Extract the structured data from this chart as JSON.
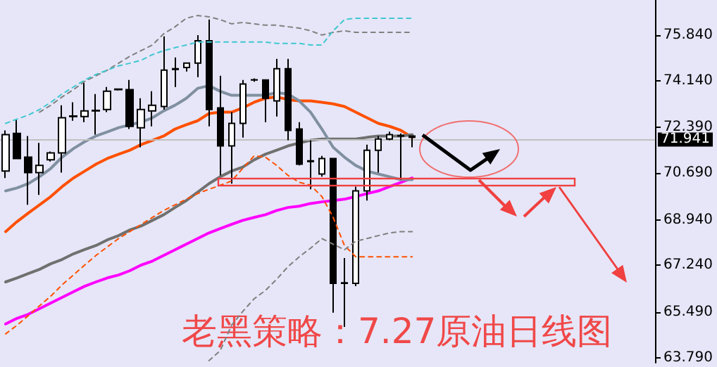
{
  "chart_data": {
    "type": "candlestick",
    "title": "老黑策略：7.27原油日线图",
    "categories": [
      null,
      null,
      null,
      null,
      null,
      null,
      null,
      null,
      null,
      null,
      null,
      null,
      null,
      null,
      null,
      null,
      null,
      null,
      null,
      null,
      null,
      null,
      null,
      null,
      null,
      null,
      null,
      null,
      null,
      null,
      null,
      null,
      null,
      null,
      null,
      null,
      null,
      null,
      null,
      null,
      null,
      null,
      null,
      null,
      null,
      null,
      null,
      null,
      null,
      null,
      null,
      null,
      null,
      null,
      null,
      null,
      null,
      null
    ],
    "ohlc": [
      [
        70.76,
        72.28,
        70.5,
        72.12
      ],
      [
        72.17,
        72.7,
        71.2,
        71.23
      ],
      [
        71.28,
        72.07,
        69.5,
        70.7
      ],
      [
        70.7,
        71.81,
        69.87,
        70.97
      ],
      [
        71.18,
        71.49,
        71.12,
        71.44
      ],
      [
        71.44,
        73.22,
        70.7,
        72.75
      ],
      [
        72.8,
        73.33,
        72.64,
        72.82
      ],
      [
        72.8,
        74.06,
        72.59,
        73.01
      ],
      [
        73.01,
        73.64,
        72.12,
        73.03
      ],
      [
        73.06,
        73.9,
        72.96,
        73.74
      ],
      [
        73.8,
        73.83,
        73.77,
        73.82
      ],
      [
        73.8,
        74.16,
        72.33,
        72.43
      ],
      [
        72.38,
        73.48,
        71.65,
        73.06
      ],
      [
        73.01,
        73.74,
        72.43,
        73.22
      ],
      [
        73.17,
        75.79,
        73.06,
        74.53
      ],
      [
        74.56,
        75.0,
        73.9,
        74.58
      ],
      [
        74.63,
        74.79,
        74.48,
        74.79
      ],
      [
        74.79,
        75.84,
        74.27,
        75.63
      ],
      [
        75.63,
        76.42,
        72.43,
        73.06
      ],
      [
        73.12,
        74.32,
        70.6,
        71.7
      ],
      [
        71.7,
        72.96,
        70.29,
        72.54
      ],
      [
        72.54,
        74.16,
        72.01,
        74.01
      ],
      [
        74.16,
        74.22,
        74.1,
        74.17
      ],
      [
        74.16,
        74.16,
        72.59,
        73.48
      ],
      [
        73.38,
        74.95,
        72.8,
        74.58
      ],
      [
        74.58,
        74.95,
        71.91,
        72.28
      ],
      [
        72.33,
        72.59,
        70.97,
        71.02
      ],
      [
        71.12,
        71.91,
        70.08,
        71.14
      ],
      [
        70.65,
        71.33,
        70.55,
        71.23
      ],
      [
        71.23,
        71.23,
        65.47,
        66.57
      ],
      [
        66.57,
        67.51,
        64.94,
        66.59
      ],
      [
        66.57,
        70.18,
        66.46,
        70.02
      ],
      [
        70.02,
        71.75,
        69.66,
        71.54
      ],
      [
        71.54,
        72.07,
        70.7,
        71.96
      ],
      [
        71.96,
        72.23,
        71.91,
        72.12
      ],
      [
        72.07,
        72.17,
        70.44,
        72.09
      ],
      [
        72.07,
        72.07,
        71.65,
        72.02
      ],
      null,
      null,
      null,
      null,
      null,
      null,
      null,
      null,
      null,
      null,
      null,
      null,
      null,
      null,
      null,
      null,
      null,
      null,
      null,
      null,
      null
    ],
    "color": "#000000",
    "series": [
      {
        "type": "line",
        "color": "#ff5000",
        "values": [
          68.5,
          68.87,
          69.19,
          69.5,
          69.81,
          70.18,
          70.5,
          70.76,
          71.02,
          71.23,
          71.39,
          71.54,
          71.75,
          71.91,
          72.07,
          72.33,
          72.49,
          72.64,
          72.91,
          72.96,
          72.96,
          73.12,
          73.33,
          73.48,
          73.53,
          73.43,
          73.38,
          73.38,
          73.33,
          73.27,
          73.17,
          72.96,
          72.75,
          72.54,
          72.43,
          72.28,
          72.02,
          null,
          null,
          null,
          null,
          null,
          null,
          null,
          null,
          null,
          null,
          null,
          null,
          null,
          null,
          null,
          null,
          null,
          null,
          null,
          null,
          null
        ]
      },
      {
        "type": "line",
        "color": "#707070",
        "values": [
          66.62,
          66.77,
          66.93,
          67.09,
          67.3,
          67.46,
          67.67,
          67.83,
          67.98,
          68.19,
          68.35,
          68.56,
          68.71,
          68.92,
          69.13,
          69.4,
          69.66,
          69.97,
          70.29,
          70.55,
          70.76,
          70.91,
          71.18,
          71.39,
          71.54,
          71.7,
          71.81,
          71.91,
          71.96,
          71.96,
          71.96,
          71.96,
          72.02,
          72.07,
          72.07,
          72.07,
          72.12,
          null,
          null,
          null,
          null,
          null,
          null,
          null,
          null,
          null,
          null,
          null,
          null,
          null,
          null,
          null,
          null,
          null,
          null,
          null,
          null,
          null
        ]
      },
      {
        "type": "line",
        "color": "#ff00ff",
        "values": [
          65.05,
          65.26,
          65.41,
          65.62,
          65.83,
          66.04,
          66.25,
          66.46,
          66.62,
          66.77,
          66.88,
          67.04,
          67.25,
          67.4,
          67.61,
          67.82,
          68.03,
          68.24,
          68.45,
          68.61,
          68.77,
          68.92,
          69.03,
          69.13,
          69.29,
          69.4,
          69.45,
          69.55,
          69.61,
          69.66,
          69.71,
          69.81,
          69.92,
          70.02,
          70.18,
          70.34,
          70.5,
          null,
          null,
          null,
          null,
          null,
          null,
          null,
          null,
          null,
          null,
          null,
          null,
          null,
          null,
          null,
          null,
          null,
          null,
          null,
          null,
          null
        ]
      },
      {
        "type": "line",
        "color": "#8090a0",
        "values": [
          70.02,
          70.13,
          70.29,
          70.55,
          70.86,
          71.28,
          71.6,
          71.86,
          72.07,
          72.22,
          72.38,
          72.49,
          72.59,
          72.75,
          73.01,
          73.22,
          73.48,
          73.85,
          73.95,
          73.74,
          73.59,
          73.59,
          73.59,
          73.59,
          73.69,
          73.64,
          73.38,
          72.96,
          72.33,
          71.65,
          71.28,
          70.97,
          70.76,
          70.65,
          70.55,
          70.44,
          70.44,
          null,
          null,
          null,
          null,
          null,
          null,
          null,
          null,
          null,
          null,
          null,
          null,
          null,
          null,
          null,
          null,
          null,
          null,
          null,
          null,
          null
        ]
      },
      {
        "type": "line",
        "color": "#808080",
        "line_style": "dashed",
        "values": [
          null,
          null,
          null,
          72.96,
          73.22,
          73.53,
          73.8,
          74.11,
          74.32,
          74.53,
          74.79,
          75.05,
          75.26,
          75.47,
          75.89,
          76.15,
          76.47,
          76.57,
          76.52,
          76.42,
          76.26,
          76.31,
          76.26,
          76.21,
          76.21,
          76.15,
          76.1,
          76.0,
          75.84,
          75.94,
          76.0,
          75.94,
          75.94,
          75.94,
          75.94,
          75.94,
          75.94,
          null,
          null,
          null,
          null,
          null,
          null,
          null,
          null,
          null,
          null,
          null,
          null,
          null,
          null,
          null,
          null,
          null,
          null,
          null,
          null,
          null
        ]
      },
      {
        "type": "line",
        "color": "#40c8d0",
        "line_style": "dashed",
        "values": [
          72.54,
          72.7,
          72.85,
          73.06,
          73.33,
          73.64,
          73.9,
          74.16,
          74.37,
          74.53,
          74.69,
          74.79,
          74.9,
          75.11,
          75.26,
          75.37,
          75.47,
          75.58,
          75.58,
          75.58,
          75.58,
          75.58,
          75.58,
          75.58,
          75.53,
          75.53,
          75.53,
          75.47,
          75.47,
          76.0,
          76.42,
          76.47,
          76.47,
          76.47,
          76.47,
          76.47,
          76.47,
          null,
          null,
          null,
          null,
          null,
          null,
          null,
          null,
          null,
          null,
          null,
          null,
          null,
          null,
          null,
          null,
          null,
          null,
          null,
          null,
          null
        ]
      },
      {
        "type": "line",
        "color": "#ff5000",
        "line_style": "dashed",
        "values": [
          64.68,
          65.0,
          65.36,
          65.73,
          66.09,
          66.51,
          66.88,
          67.25,
          67.61,
          67.93,
          68.24,
          68.5,
          68.77,
          69.03,
          69.29,
          69.5,
          69.71,
          69.92,
          70.08,
          70.23,
          70.39,
          70.86,
          71.33,
          71.28,
          70.97,
          70.6,
          70.34,
          70.23,
          69.81,
          69.03,
          67.98,
          67.56,
          67.56,
          67.56,
          67.56,
          67.56,
          67.56,
          null,
          null,
          null,
          null,
          null,
          null,
          null,
          null,
          null,
          null,
          null,
          null,
          null,
          null,
          null,
          null,
          null,
          null,
          null,
          null,
          null
        ]
      },
      {
        "type": "line",
        "color": "#808080",
        "line_style": "dashed",
        "values": [
          null,
          null,
          null,
          null,
          null,
          null,
          null,
          null,
          null,
          null,
          null,
          null,
          null,
          null,
          null,
          null,
          null,
          null,
          63.68,
          64.05,
          65.0,
          65.52,
          65.99,
          66.3,
          66.72,
          67.19,
          67.56,
          67.88,
          68.24,
          68.03,
          67.82,
          68.14,
          68.24,
          68.35,
          68.45,
          68.5,
          68.5,
          null,
          null,
          null,
          null,
          null,
          null,
          null,
          null,
          null,
          null,
          null,
          null,
          null,
          null,
          null,
          null,
          null,
          null,
          null,
          null,
          null
        ]
      }
    ],
    "ylim": [
      63.6,
      77.15
    ],
    "yticks": [
      {
        "value": 63.79,
        "label": "63.790"
      },
      {
        "value": 65.49,
        "label": "65.490"
      },
      {
        "value": 67.24,
        "label": "67.240"
      },
      {
        "value": 68.94,
        "label": "68.940"
      },
      {
        "value": 70.69,
        "label": "70.690"
      },
      {
        "value": 72.39,
        "label": "72.390"
      },
      {
        "value": 74.14,
        "label": "74.140"
      },
      {
        "value": 75.84,
        "label": "75.840"
      }
    ],
    "ref_lines": [
      {
        "axis": "y",
        "value": 71.941,
        "label": "71.941",
        "color": "#c0c0c0"
      }
    ]
  }
}
